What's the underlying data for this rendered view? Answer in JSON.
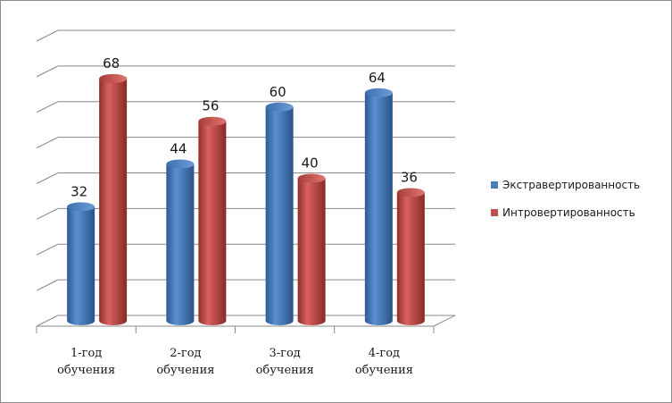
{
  "chart_data": {
    "type": "bar",
    "title": "",
    "xlabel": "",
    "ylabel": "",
    "ylim": [
      0,
      80
    ],
    "grid": true,
    "legend": "right",
    "categories": [
      [
        "1-год",
        "обучения"
      ],
      [
        "2-год",
        "обучения"
      ],
      [
        "3-год",
        "обучения"
      ],
      [
        "4-год",
        "обучения"
      ]
    ],
    "series": [
      {
        "name": "Экстравертированность",
        "color": "#4a7ebb",
        "values": [
          32,
          44,
          60,
          64
        ],
        "labels": [
          "32",
          "44",
          "60",
          "64"
        ]
      },
      {
        "name": "Интровертированность",
        "color": "#c0504d",
        "values": [
          68,
          56,
          40,
          36
        ],
        "labels": [
          "68",
          "56",
          "40",
          "36"
        ]
      }
    ]
  }
}
